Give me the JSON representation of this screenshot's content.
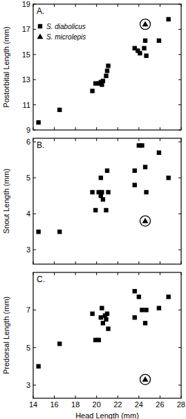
{
  "chart_data": [
    {
      "type": "scatter",
      "y_label": "Postorbital Length (mm)",
      "annotations": [
        "A."
      ],
      "xlim": [
        14,
        28
      ],
      "xticks": [
        14,
        16,
        18,
        20,
        22,
        24,
        26,
        28
      ],
      "ylim": [
        9,
        19
      ],
      "yticks": [
        9,
        11,
        13,
        15,
        17,
        19
      ],
      "tick_labels": "y",
      "legend": "top-left",
      "series": [
        {
          "name": "S. diabolicus",
          "color": "#000000",
          "marker": "square",
          "x": [
            14.5,
            16.5,
            19.6,
            19.9,
            20.2,
            20.4,
            20.5,
            20.6,
            20.9,
            21.0,
            21.1,
            23.6,
            23.9,
            24.1,
            24.5,
            24.6,
            24.7,
            25.9,
            26.8
          ],
          "values": [
            9.6,
            10.6,
            12.1,
            12.7,
            12.7,
            12.8,
            12.6,
            12.9,
            13.3,
            13.7,
            14.1,
            15.5,
            15.3,
            15.1,
            15.5,
            16.1,
            14.9,
            16.1,
            17.8
          ]
        },
        {
          "name": "S. microlepis",
          "color": "#000000",
          "marker": "circled-triangle",
          "x": [
            24.6
          ],
          "values": [
            17.4
          ]
        }
      ]
    },
    {
      "type": "scatter",
      "y_label": "Snout Length (mm)",
      "annotations": [
        "B."
      ],
      "xlim": [
        14,
        28
      ],
      "xticks": [
        14,
        16,
        18,
        20,
        22,
        24,
        26,
        28
      ],
      "ylim": [
        2.6,
        6.1
      ],
      "yticks": [
        3,
        4,
        5,
        6
      ],
      "tick_labels": "y",
      "series": [
        {
          "name": "S. diabolicus",
          "color": "#000000",
          "marker": "square",
          "x": [
            14.5,
            16.5,
            19.6,
            19.9,
            20.2,
            20.4,
            20.4,
            20.5,
            20.6,
            20.9,
            21.0,
            21.1,
            23.6,
            23.6,
            24.0,
            24.3,
            24.6,
            24.7,
            25.9,
            26.8
          ],
          "values": [
            3.5,
            3.5,
            4.6,
            4.1,
            4.6,
            4.5,
            5.0,
            4.6,
            4.4,
            4.1,
            5.2,
            4.6,
            5.2,
            4.8,
            5.9,
            5.9,
            5.3,
            4.6,
            5.7,
            5.0
          ]
        },
        {
          "name": "S. microlepis",
          "color": "#000000",
          "marker": "circled-triangle",
          "x": [
            24.6
          ],
          "values": [
            3.8
          ]
        }
      ]
    },
    {
      "type": "scatter",
      "y_label": "Predorsal Length (mm)",
      "x_label": "Head Length (mm)",
      "annotations": [
        "C."
      ],
      "xlim": [
        14,
        28
      ],
      "xticks": [
        14,
        16,
        18,
        20,
        22,
        24,
        26,
        28
      ],
      "ylim": [
        2.3,
        9
      ],
      "yticks": [
        3,
        5,
        7
      ],
      "series": [
        {
          "name": "S. diabolicus",
          "color": "#000000",
          "marker": "square",
          "x": [
            14.5,
            16.5,
            19.6,
            19.9,
            20.2,
            20.4,
            20.5,
            20.6,
            20.9,
            21.0,
            21.1,
            20.8,
            23.6,
            23.6,
            24.0,
            24.3,
            24.6,
            24.7,
            25.9,
            26.8
          ],
          "values": [
            4.0,
            5.2,
            6.8,
            5.4,
            5.4,
            6.6,
            7.1,
            6.3,
            6.5,
            6.8,
            6.0,
            6.7,
            8.0,
            6.6,
            7.7,
            7.0,
            6.3,
            7.0,
            7.1,
            7.7
          ]
        },
        {
          "name": "S. microlepis",
          "color": "#000000",
          "marker": "circled-triangle",
          "x": [
            24.6
          ],
          "values": [
            3.3
          ]
        }
      ]
    }
  ]
}
